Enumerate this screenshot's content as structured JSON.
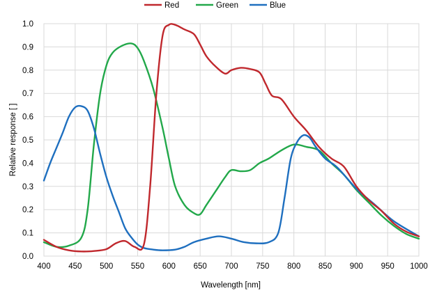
{
  "chart_data": {
    "type": "line",
    "title": "",
    "xlabel": "Wavelength [nm]",
    "ylabel": "Relative response [ ]",
    "xlim": [
      400,
      1000
    ],
    "ylim": [
      0,
      1.0
    ],
    "x_ticks": [
      400,
      450,
      500,
      550,
      600,
      650,
      700,
      750,
      800,
      850,
      900,
      950,
      1000
    ],
    "y_ticks": [
      0.0,
      0.1,
      0.2,
      0.3,
      0.4,
      0.5,
      0.6,
      0.7,
      0.8,
      0.9,
      1.0
    ],
    "x_tick_labels": [
      "400",
      "450",
      "500",
      "550",
      "600",
      "650",
      "700",
      "750",
      "800",
      "850",
      "900",
      "950",
      "1000"
    ],
    "y_tick_labels": [
      "0.0",
      "0.1",
      "0.2",
      "0.3",
      "0.4",
      "0.5",
      "0.6",
      "0.7",
      "0.8",
      "0.9",
      "1.0"
    ],
    "grid": true,
    "legend_position": "top",
    "series": [
      {
        "name": "Red",
        "color": "#c0282d",
        "x": [
          400,
          420,
          440,
          460,
          480,
          500,
          515,
          530,
          545,
          560,
          570,
          580,
          590,
          600,
          610,
          625,
          640,
          650,
          660,
          675,
          690,
          700,
          715,
          730,
          745,
          755,
          765,
          780,
          800,
          820,
          840,
          860,
          880,
          900,
          920,
          940,
          960,
          980,
          1000
        ],
        "y": [
          0.07,
          0.04,
          0.025,
          0.02,
          0.022,
          0.03,
          0.055,
          0.065,
          0.04,
          0.05,
          0.3,
          0.7,
          0.95,
          0.995,
          0.995,
          0.975,
          0.955,
          0.91,
          0.86,
          0.815,
          0.785,
          0.8,
          0.81,
          0.805,
          0.79,
          0.74,
          0.69,
          0.675,
          0.6,
          0.54,
          0.47,
          0.42,
          0.385,
          0.3,
          0.24,
          0.195,
          0.14,
          0.105,
          0.085
        ]
      },
      {
        "name": "Green",
        "color": "#22a84a",
        "x": [
          400,
          420,
          440,
          460,
          470,
          480,
          490,
          500,
          510,
          525,
          540,
          550,
          560,
          575,
          590,
          600,
          610,
          625,
          640,
          650,
          660,
          675,
          690,
          700,
          715,
          730,
          745,
          760,
          780,
          800,
          820,
          840,
          860,
          880,
          900,
          920,
          940,
          960,
          980,
          1000
        ],
        "y": [
          0.06,
          0.04,
          0.045,
          0.08,
          0.2,
          0.48,
          0.7,
          0.82,
          0.875,
          0.905,
          0.915,
          0.895,
          0.84,
          0.72,
          0.55,
          0.42,
          0.3,
          0.22,
          0.185,
          0.18,
          0.22,
          0.28,
          0.34,
          0.37,
          0.365,
          0.37,
          0.4,
          0.42,
          0.455,
          0.48,
          0.47,
          0.455,
          0.4,
          0.35,
          0.285,
          0.23,
          0.175,
          0.13,
          0.095,
          0.075
        ]
      },
      {
        "name": "Blue",
        "color": "#1e6fbf",
        "x": [
          400,
          410,
          420,
          430,
          440,
          450,
          460,
          470,
          480,
          490,
          500,
          510,
          520,
          530,
          540,
          550,
          560,
          575,
          590,
          610,
          625,
          640,
          660,
          680,
          700,
          720,
          740,
          760,
          775,
          785,
          795,
          805,
          815,
          825,
          835,
          850,
          870,
          900,
          930,
          960,
          1000
        ],
        "y": [
          0.325,
          0.4,
          0.465,
          0.53,
          0.6,
          0.64,
          0.645,
          0.625,
          0.55,
          0.44,
          0.34,
          0.26,
          0.19,
          0.12,
          0.08,
          0.05,
          0.035,
          0.028,
          0.025,
          0.028,
          0.04,
          0.06,
          0.075,
          0.085,
          0.075,
          0.06,
          0.055,
          0.06,
          0.1,
          0.25,
          0.42,
          0.49,
          0.52,
          0.51,
          0.47,
          0.42,
          0.38,
          0.29,
          0.22,
          0.15,
          0.085
        ]
      }
    ]
  }
}
